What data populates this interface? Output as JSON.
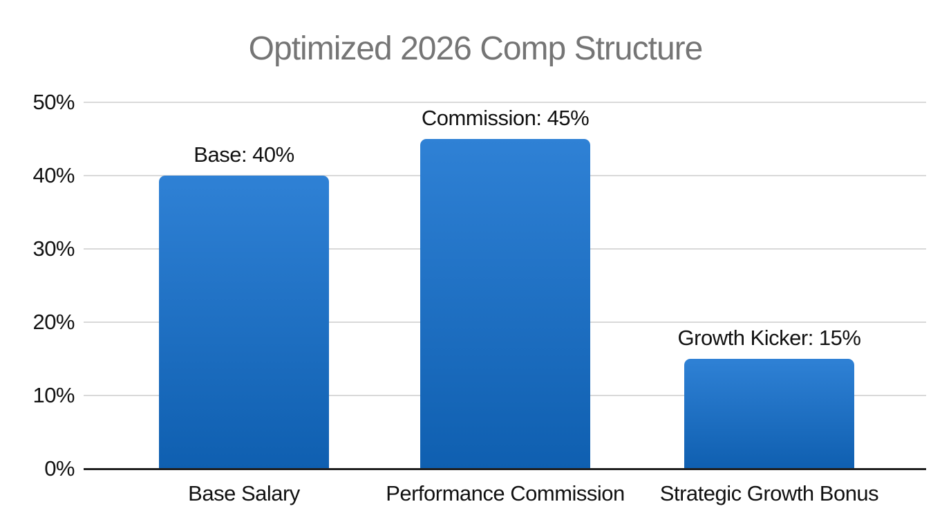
{
  "chart_data": {
    "type": "bar",
    "title": "Optimized 2026 Comp Structure",
    "categories": [
      "Base Salary",
      "Performance Commission",
      "Strategic Growth Bonus"
    ],
    "values": [
      40,
      45,
      15
    ],
    "bar_labels": [
      "Base: 40%",
      "Commission: 45%",
      "Growth Kicker: 15%"
    ],
    "yticks": [
      0,
      10,
      20,
      30,
      40,
      50
    ],
    "ytick_labels": [
      "0%",
      "10%",
      "20%",
      "30%",
      "40%",
      "50%"
    ],
    "ylim": [
      0,
      50
    ],
    "xlabel": "",
    "ylabel": "",
    "grid": true,
    "legend": false,
    "colors": {
      "bar_gradient_top": "#2f81d5",
      "bar_gradient_bottom": "#0f5fb0",
      "title_text": "#757575",
      "axis_text": "#111111",
      "gridline": "#d9d9d9",
      "baseline": "#212121",
      "background": "#ffffff"
    }
  }
}
